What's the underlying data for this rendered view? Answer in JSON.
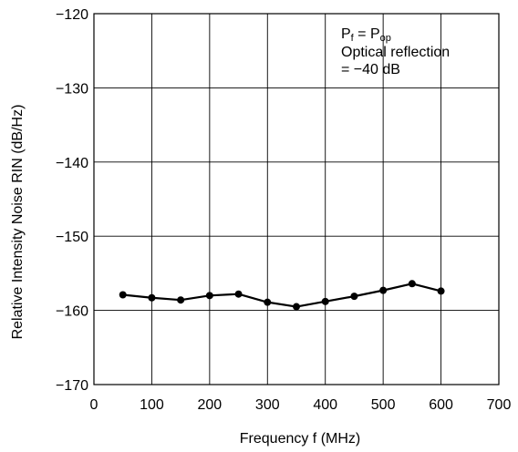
{
  "chart_data": {
    "type": "line",
    "title": "",
    "xlabel": "Frequency  f (MHz)",
    "ylabel": "Relative Intensity Noise RIN  (dB/Hz)",
    "xlim": [
      0,
      700
    ],
    "ylim": [
      -170,
      -120
    ],
    "x_ticks": [
      "0",
      "100",
      "200",
      "300",
      "400",
      "500",
      "600",
      "700"
    ],
    "y_ticks": [
      "−120",
      "−130",
      "−140",
      "−150",
      "−160",
      "−170"
    ],
    "grid": true,
    "legend": "none",
    "annotation": {
      "line1_main": "P",
      "line1_sub": "f",
      "line1_eq": " = P",
      "line1_sub2": "op",
      "line2": "Optical reflection",
      "line3": "= −40 dB"
    },
    "series": [
      {
        "x": [
          50,
          100,
          150,
          200,
          250,
          300,
          350,
          400,
          450,
          500,
          550,
          600
        ],
        "y": [
          -157.9,
          -158.3,
          -158.6,
          -158.0,
          -157.8,
          -158.9,
          -159.5,
          -158.8,
          -158.1,
          -157.3,
          -156.4,
          -157.4
        ]
      }
    ],
    "colors": {
      "line": "#000000",
      "grid": "#000000",
      "background": "#ffffff"
    }
  }
}
